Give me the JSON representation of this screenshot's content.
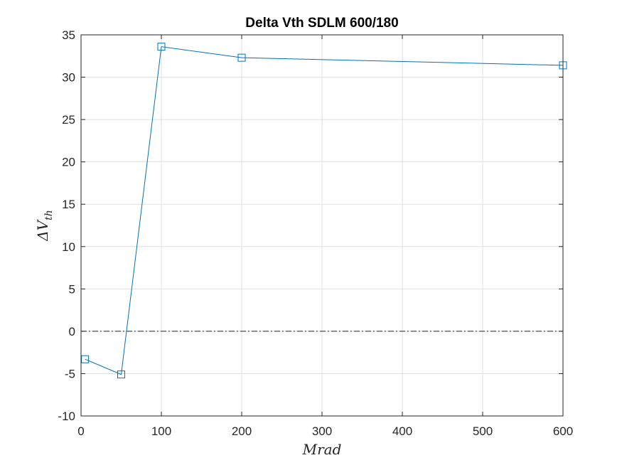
{
  "chart_data": {
    "type": "line",
    "title": "Delta Vth SDLM 600/180",
    "xlabel": "Mrad",
    "ylabel": "ΔV",
    "ylabel_subscript": "th",
    "xlim": [
      0,
      600
    ],
    "ylim": [
      -10,
      35
    ],
    "x_ticks": [
      0,
      100,
      200,
      300,
      400,
      500,
      600
    ],
    "y_ticks": [
      -10,
      -5,
      0,
      5,
      10,
      15,
      20,
      25,
      30,
      35
    ],
    "grid": true,
    "legend": "none",
    "reference_line": {
      "y": 0,
      "style": "dash-dot",
      "color": "#262626"
    },
    "series": [
      {
        "marker": "square",
        "color": "#0072BD",
        "x": [
          5,
          50,
          100,
          200,
          600
        ],
        "y": [
          -3.3,
          -5.1,
          33.6,
          32.3,
          31.4
        ]
      }
    ]
  },
  "colors": {
    "series": "#0072BD",
    "axis": "#262626",
    "grid": "#dfdfdf",
    "background": "#ffffff"
  }
}
